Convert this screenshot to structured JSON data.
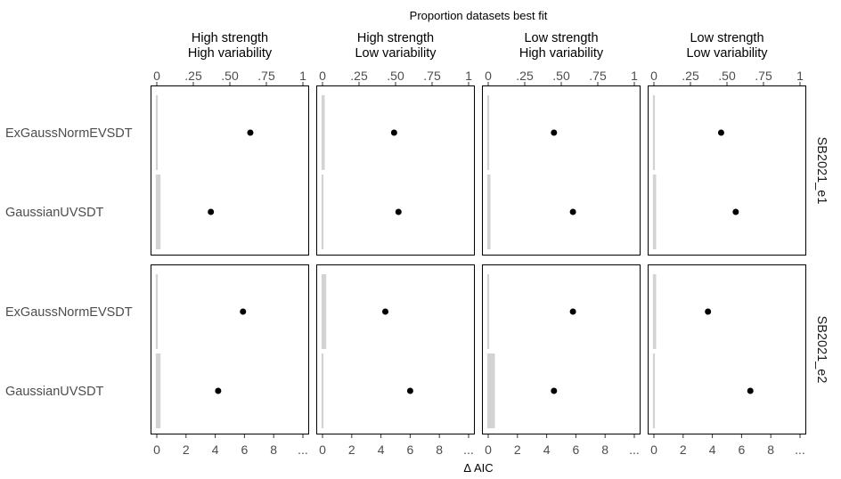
{
  "chart_data": {
    "type": "scatter",
    "top_title": "Proportion datasets best fit",
    "bottom_title": "Δ AIC",
    "columns": [
      {
        "line1": "High strength",
        "line2": "High variability"
      },
      {
        "line1": "High strength",
        "line2": "Low variability"
      },
      {
        "line1": "Low strength",
        "line2": "High variability"
      },
      {
        "line1": "Low strength",
        "line2": "Low variability"
      }
    ],
    "rows": [
      "SB2021_e1",
      "SB2021_e2"
    ],
    "models": [
      "ExGaussNormEVSDT",
      "GaussianUVSDT"
    ],
    "top_axis": {
      "range": [
        0,
        1
      ],
      "ticks": [
        0,
        0.25,
        0.5,
        0.75,
        1
      ],
      "tick_labels": [
        "0",
        ".25",
        ".50",
        ".75",
        "1"
      ]
    },
    "bottom_axis": {
      "range": [
        0,
        10
      ],
      "ticks": [
        0,
        2,
        4,
        6,
        8,
        10
      ],
      "tick_labels": [
        "0",
        "2",
        "4",
        "6",
        "8",
        "..."
      ]
    },
    "proportion_points": [
      [
        [
          0.64,
          0.37
        ],
        [
          0.49,
          0.52
        ],
        [
          0.45,
          0.58
        ],
        [
          0.46,
          0.56
        ]
      ],
      [
        [
          0.59,
          0.42
        ],
        [
          0.43,
          0.6
        ],
        [
          0.58,
          0.45
        ],
        [
          0.37,
          0.66
        ]
      ]
    ],
    "delta_aic_bars": [
      [
        [
          0,
          0.2
        ],
        [
          0.1,
          0
        ],
        [
          0,
          0.1
        ],
        [
          0,
          0.1
        ]
      ],
      [
        [
          0,
          0.2
        ],
        [
          0.2,
          0
        ],
        [
          0,
          0.4
        ],
        [
          0.1,
          0
        ]
      ]
    ]
  }
}
